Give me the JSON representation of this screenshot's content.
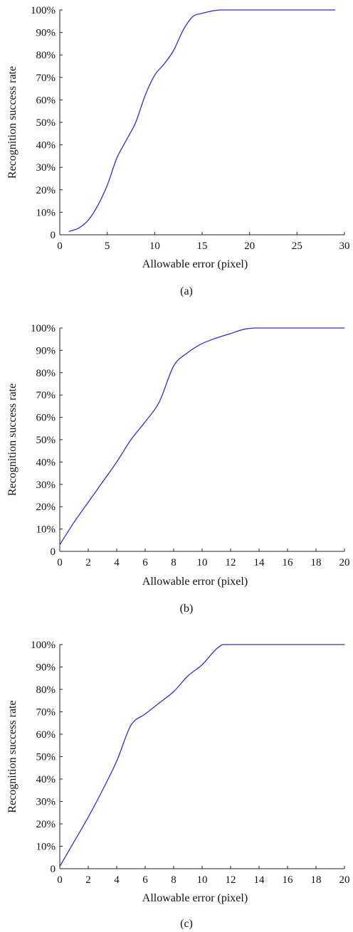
{
  "chart_data": [
    {
      "type": "line",
      "caption": "(a)",
      "xlabel": "Allowable error (pixel)",
      "ylabel": "Recognition success rate",
      "xlim": [
        0,
        30
      ],
      "ylim": [
        0,
        100
      ],
      "x_ticks": [
        0,
        5,
        10,
        15,
        20,
        25,
        30
      ],
      "y_ticks": [
        0,
        10,
        20,
        30,
        40,
        50,
        60,
        70,
        80,
        90,
        100
      ],
      "y_tick_labels": [
        "0",
        "10%",
        "20%",
        "30%",
        "40%",
        "50%",
        "60%",
        "70%",
        "80%",
        "90%",
        "100%"
      ],
      "grid": false,
      "color": "#3030c0",
      "series": [
        {
          "x": [
            1,
            2,
            3,
            4,
            5,
            6,
            7,
            8,
            9,
            10,
            11,
            12,
            13,
            14,
            15,
            16,
            17,
            18,
            20,
            25,
            29
          ],
          "values": [
            1.5,
            3,
            6.5,
            13,
            22,
            34,
            42,
            50,
            62,
            71,
            76,
            82,
            91,
            97,
            98.5,
            99.5,
            100,
            100,
            100,
            100,
            100
          ]
        }
      ]
    },
    {
      "type": "line",
      "caption": "(b)",
      "xlabel": "Allowable error (pixel)",
      "ylabel": "Recognition success rate",
      "xlim": [
        0,
        20
      ],
      "ylim": [
        0,
        100
      ],
      "x_ticks": [
        0,
        2,
        4,
        6,
        8,
        10,
        12,
        14,
        16,
        18,
        20
      ],
      "y_ticks": [
        0,
        10,
        20,
        30,
        40,
        50,
        60,
        70,
        80,
        90,
        100
      ],
      "y_tick_labels": [
        "0",
        "10%",
        "20%",
        "30%",
        "40%",
        "50%",
        "60%",
        "70%",
        "80%",
        "90%",
        "100%"
      ],
      "grid": false,
      "color": "#3030c0",
      "series": [
        {
          "x": [
            0,
            1,
            2,
            3,
            4,
            5,
            6,
            7,
            8,
            9,
            10,
            11,
            12,
            13,
            14,
            16,
            18,
            20
          ],
          "values": [
            3,
            13,
            22,
            31,
            40,
            50,
            58,
            67,
            83,
            89,
            93,
            95.5,
            97.5,
            99.5,
            100,
            100,
            100,
            100
          ]
        }
      ]
    },
    {
      "type": "line",
      "caption": "(c)",
      "xlabel": "Allowable error (pixel)",
      "ylabel": "Recognition success rate",
      "xlim": [
        0,
        20
      ],
      "ylim": [
        0,
        100
      ],
      "x_ticks": [
        0,
        2,
        4,
        6,
        8,
        10,
        12,
        14,
        16,
        18,
        20
      ],
      "y_ticks": [
        0,
        10,
        20,
        30,
        40,
        50,
        60,
        70,
        80,
        90,
        100
      ],
      "y_tick_labels": [
        "0",
        "10%",
        "20%",
        "30%",
        "40%",
        "50%",
        "60%",
        "70%",
        "80%",
        "90%",
        "100%"
      ],
      "grid": false,
      "color": "#3030c0",
      "series": [
        {
          "x": [
            0,
            1,
            2,
            3,
            4,
            5,
            6,
            7,
            8,
            9,
            10,
            11,
            11.5,
            12,
            14,
            16,
            18,
            20
          ],
          "values": [
            1,
            12,
            23,
            35,
            48,
            64,
            69,
            74,
            79,
            86,
            91,
            98,
            100,
            100,
            100,
            100,
            100,
            100
          ]
        }
      ]
    }
  ]
}
